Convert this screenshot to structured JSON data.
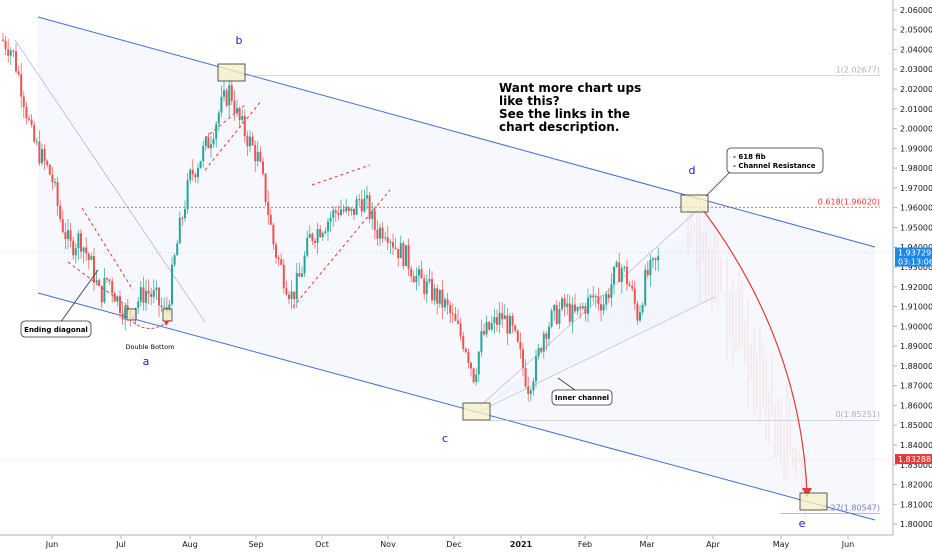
{
  "chart_data": {
    "type": "candlestick",
    "y_axis": {
      "ticks": [
        "2.06000",
        "2.05000",
        "2.04000",
        "2.03000",
        "2.02000",
        "2.01000",
        "2.00000",
        "1.99000",
        "1.98000",
        "1.97000",
        "1.96000",
        "1.95000",
        "1.94000",
        "1.93000",
        "1.92000",
        "1.91000",
        "1.90000",
        "1.89000",
        "1.88000",
        "1.87000",
        "1.86000",
        "1.85000",
        "1.84000",
        "1.83000",
        "1.82000",
        "1.81000",
        "1.80000"
      ],
      "ylim": [
        1.796,
        2.064
      ]
    },
    "x_axis": {
      "ticks": [
        "Jun",
        "Jul",
        "Aug",
        "Sep",
        "Oct",
        "Nov",
        "Dec",
        "2021",
        "Feb",
        "Mar",
        "Apr",
        "May",
        "Jun"
      ],
      "bold_ticks": [
        "2021"
      ]
    },
    "price_tags": [
      {
        "value": "1.93729",
        "sub": "03:13:06",
        "color": "#1e88e5"
      },
      {
        "value": "1.83288",
        "sub": "",
        "color": "#e53935"
      }
    ],
    "fib_levels": [
      {
        "label": "1(2.02677)",
        "value": 2.02677,
        "color": "#b0b0c8"
      },
      {
        "label": "0.618(1.96020)",
        "value": 1.9602,
        "color": "#e53935"
      },
      {
        "label": "0(1.85251)",
        "value": 1.85251,
        "color": "#b0b0c8"
      },
      {
        "label": "-0.27(1.80547)",
        "value": 1.80547,
        "color": "#7b7bb0"
      }
    ],
    "wave_labels": [
      "a",
      "b",
      "c",
      "d",
      "e"
    ],
    "annotations": {
      "headline": [
        "Want more chart ups",
        "like this?",
        "See the links in the",
        "chart description."
      ],
      "fib_note": [
        "- 618 fib",
        "- Channel Resistance"
      ],
      "ending_diagonal": "Ending diagonal",
      "double_bottom": "Double Bottom",
      "inner_channel": "Inner channel"
    },
    "colors": {
      "up": "#26a69a",
      "down": "#ef5350",
      "channel": "#3f6fd1",
      "projection": "#e53935",
      "box_fill": "#f7f0c6"
    },
    "grid": false,
    "legend": "none"
  }
}
